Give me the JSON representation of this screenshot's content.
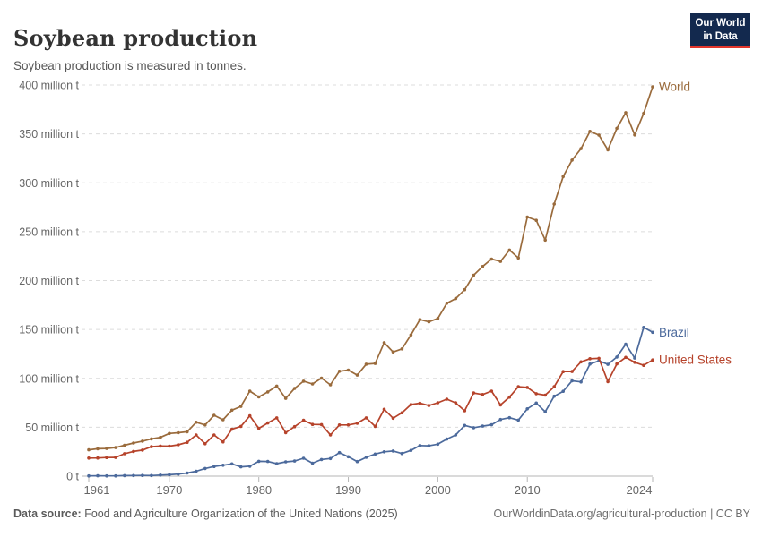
{
  "header": {
    "title": "Soybean production",
    "subtitle": "Soybean production is measured in tonnes."
  },
  "logo": {
    "line1": "Our World",
    "line2": "in Data",
    "bg_color": "#13294E",
    "accent_color": "#E2352C"
  },
  "footer": {
    "source_label": "Data source:",
    "source_text": " Food and Agriculture Organization of the United Nations (2025)",
    "right_text": "OurWorldinData.org/agricultural-production | CC BY"
  },
  "chart_data": {
    "type": "line",
    "title": "Soybean production",
    "subtitle": "Soybean production is measured in tonnes.",
    "y_unit": "million tonnes",
    "ylim": [
      0,
      400
    ],
    "grid": "horizontal-dashed",
    "legend_position": "line-end-labels",
    "colors": {
      "axis_text": "#666666",
      "gridline": "#dcdcdc",
      "axis_line": "#b6b6b6"
    },
    "x": [
      1961,
      1962,
      1963,
      1964,
      1965,
      1966,
      1967,
      1968,
      1969,
      1970,
      1971,
      1972,
      1973,
      1974,
      1975,
      1976,
      1977,
      1978,
      1979,
      1980,
      1981,
      1982,
      1983,
      1984,
      1985,
      1986,
      1987,
      1988,
      1989,
      1990,
      1991,
      1992,
      1993,
      1994,
      1995,
      1996,
      1997,
      1998,
      1999,
      2000,
      2001,
      2002,
      2003,
      2004,
      2005,
      2006,
      2007,
      2008,
      2009,
      2010,
      2011,
      2012,
      2013,
      2014,
      2015,
      2016,
      2017,
      2018,
      2019,
      2020,
      2021,
      2022,
      2023,
      2024
    ],
    "x_ticks": [
      1961,
      1970,
      1980,
      1990,
      2000,
      2010,
      2024
    ],
    "y_ticks": [
      {
        "value": 0,
        "label": "0 t"
      },
      {
        "value": 50,
        "label": "50 million t"
      },
      {
        "value": 100,
        "label": "100 million t"
      },
      {
        "value": 150,
        "label": "150 million t"
      },
      {
        "value": 200,
        "label": "200 million t"
      },
      {
        "value": 250,
        "label": "250 million t"
      },
      {
        "value": 300,
        "label": "300 million t"
      },
      {
        "value": 350,
        "label": "350 million t"
      },
      {
        "value": 400,
        "label": "400 million t"
      }
    ],
    "series": [
      {
        "name": "World",
        "color": "#9A6B3C",
        "values": [
          26.9,
          28.0,
          28.3,
          29.2,
          31.6,
          33.9,
          35.8,
          38.1,
          39.6,
          43.7,
          44.4,
          45.4,
          55.1,
          52.4,
          62.2,
          57.7,
          67.5,
          71.3,
          87.0,
          81.0,
          86.1,
          92.1,
          79.5,
          89.7,
          97.1,
          94.3,
          100.2,
          93.4,
          107.3,
          108.5,
          103.3,
          114.5,
          115.2,
          136.5,
          127.0,
          130.2,
          144.4,
          160.1,
          157.8,
          161.3,
          176.8,
          181.6,
          190.7,
          205.5,
          214.4,
          222.0,
          219.6,
          231.2,
          223.2,
          265.0,
          261.6,
          241.4,
          278.3,
          306.4,
          323.2,
          334.9,
          352.6,
          348.7,
          333.7,
          355.7,
          371.7,
          348.9,
          371.0,
          398.2
        ]
      },
      {
        "name": "Brazil",
        "color": "#4C6A9C",
        "values": [
          0.27,
          0.35,
          0.32,
          0.3,
          0.52,
          0.6,
          0.72,
          0.65,
          1.06,
          1.51,
          2.08,
          3.22,
          5.01,
          7.88,
          9.89,
          11.2,
          12.5,
          9.5,
          10.2,
          15.2,
          15.0,
          12.8,
          14.6,
          15.5,
          18.3,
          13.3,
          17.0,
          18.0,
          24.1,
          19.9,
          14.9,
          19.2,
          22.6,
          24.9,
          25.7,
          23.2,
          26.4,
          31.3,
          31.0,
          32.7,
          37.9,
          42.1,
          51.9,
          49.5,
          51.2,
          52.5,
          57.9,
          59.8,
          57.3,
          68.8,
          74.8,
          65.8,
          81.7,
          86.8,
          97.5,
          96.4,
          114.7,
          117.9,
          114.3,
          121.8,
          134.9,
          120.7,
          152.1,
          147.1
        ]
      },
      {
        "name": "United States",
        "color": "#B6432B",
        "values": [
          18.5,
          18.6,
          19.0,
          19.1,
          23.0,
          25.3,
          26.6,
          30.1,
          30.8,
          30.7,
          32.0,
          34.6,
          42.1,
          33.1,
          42.1,
          35.1,
          48.0,
          50.9,
          61.7,
          48.9,
          54.4,
          59.6,
          44.5,
          50.6,
          57.1,
          52.9,
          52.7,
          42.2,
          52.4,
          52.4,
          54.1,
          59.6,
          50.9,
          68.4,
          59.2,
          64.8,
          73.2,
          74.6,
          72.2,
          75.1,
          78.7,
          75.0,
          66.8,
          85.0,
          83.5,
          87.0,
          72.9,
          80.8,
          91.4,
          90.7,
          84.3,
          82.8,
          91.4,
          106.9,
          107.0,
          116.9,
          120.1,
          120.5,
          96.7,
          114.8,
          121.5,
          116.4,
          113.3,
          118.8
        ]
      }
    ]
  }
}
